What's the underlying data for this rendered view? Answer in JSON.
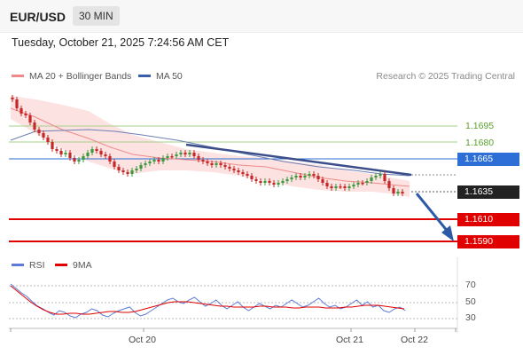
{
  "header": {
    "symbol": "EUR/USD",
    "interval": "30 MIN"
  },
  "timestamp": "Tuesday, October 21, 2025 7:24:56 AM CET",
  "legend": {
    "ma20": {
      "label": "MA 20 + Bollinger Bands",
      "color": "#f08a8a"
    },
    "ma50": {
      "label": "MA 50",
      "color": "#3b5ea8"
    },
    "rsi": {
      "label": "RSI",
      "color": "#5b7bd5"
    },
    "ma9": {
      "label": "9MA",
      "color": "#e00000"
    }
  },
  "copyright": "Research © 2025 Trading Central",
  "price_levels": [
    {
      "label": "1.1695",
      "kind": "target",
      "color": "#5aa02c"
    },
    {
      "label": "1.1680",
      "kind": "target",
      "color": "#5aa02c"
    },
    {
      "label": "1.1665",
      "kind": "pivot",
      "color": "#2d6fd6"
    },
    {
      "label": "1.1635",
      "kind": "current",
      "color": "#222222"
    },
    {
      "label": "1.1610",
      "kind": "support",
      "color": "#e00000"
    },
    {
      "label": "1.1590",
      "kind": "support",
      "color": "#e00000"
    }
  ],
  "rsi_levels": [
    "70",
    "50",
    "30"
  ],
  "x_labels": [
    "Oct 20",
    "Oct 21",
    "Oct 22"
  ]
}
